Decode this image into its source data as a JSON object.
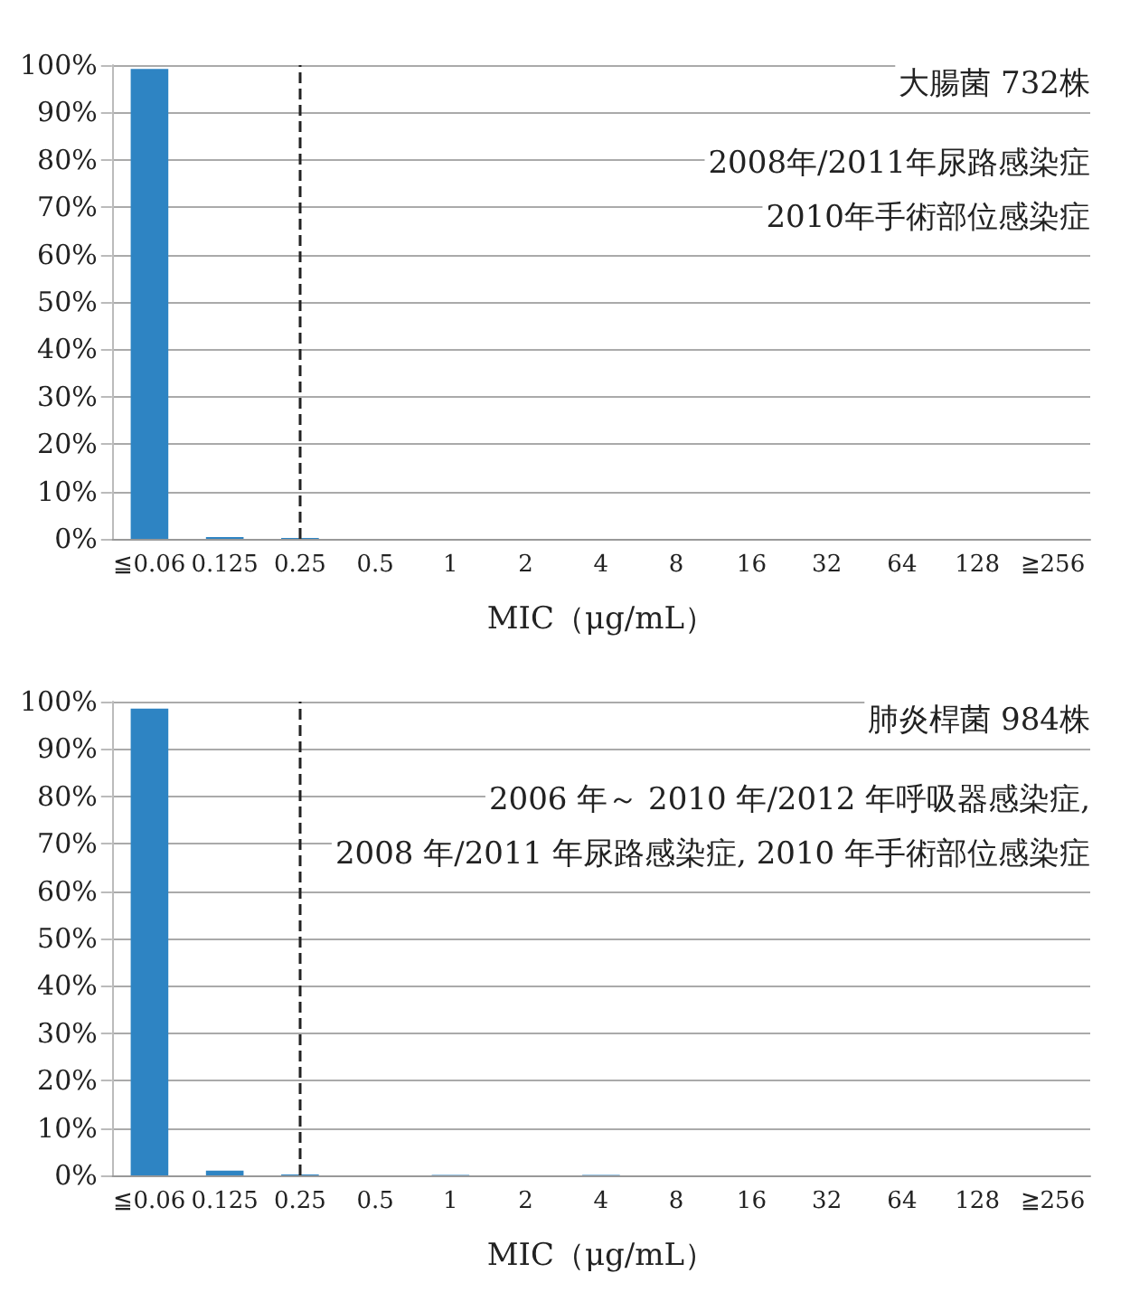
{
  "chart_data": [
    {
      "type": "bar",
      "xlabel": "MIC（μg/mL）",
      "categories": [
        "≦0.06",
        "0.125",
        "0.25",
        "0.5",
        "1",
        "2",
        "4",
        "8",
        "16",
        "32",
        "64",
        "128",
        "≧256"
      ],
      "values": [
        99.2,
        0.4,
        0.2,
        0,
        0,
        0,
        0,
        0,
        0,
        0,
        0,
        0,
        0
      ],
      "color": "#2e84c3",
      "ylim": [
        0,
        100
      ],
      "yticks": [
        {
          "value": 0,
          "label": "0%"
        },
        {
          "value": 10,
          "label": "10%"
        },
        {
          "value": 20,
          "label": "20%"
        },
        {
          "value": 30,
          "label": "30%"
        },
        {
          "value": 40,
          "label": "40%"
        },
        {
          "value": 50,
          "label": "50%"
        },
        {
          "value": 60,
          "label": "60%"
        },
        {
          "value": 70,
          "label": "70%"
        },
        {
          "value": 80,
          "label": "80%"
        },
        {
          "value": 90,
          "label": "90%"
        },
        {
          "value": 100,
          "label": "100%"
        }
      ],
      "grid": "y",
      "ref_lines": [
        {
          "axis": "x",
          "value": "0.25",
          "line_style": "dashed",
          "color": "#222222"
        }
      ],
      "annotations": [
        "大腸菌 732株",
        "2008年/2011年尿路感染症",
        "2010年手術部位感染症"
      ]
    },
    {
      "type": "bar",
      "xlabel": "MIC（μg/mL）",
      "categories": [
        "≦0.06",
        "0.125",
        "0.25",
        "0.5",
        "1",
        "2",
        "4",
        "8",
        "16",
        "32",
        "64",
        "128",
        "≧256"
      ],
      "values": [
        98.5,
        1.0,
        0.2,
        0,
        0.1,
        0,
        0.1,
        0,
        0,
        0,
        0,
        0,
        0
      ],
      "color": "#2e84c3",
      "ylim": [
        0,
        100
      ],
      "yticks": [
        {
          "value": 0,
          "label": "0%"
        },
        {
          "value": 10,
          "label": "10%"
        },
        {
          "value": 20,
          "label": "20%"
        },
        {
          "value": 30,
          "label": "30%"
        },
        {
          "value": 40,
          "label": "40%"
        },
        {
          "value": 50,
          "label": "50%"
        },
        {
          "value": 60,
          "label": "60%"
        },
        {
          "value": 70,
          "label": "70%"
        },
        {
          "value": 80,
          "label": "80%"
        },
        {
          "value": 90,
          "label": "90%"
        },
        {
          "value": 100,
          "label": "100%"
        }
      ],
      "grid": "y",
      "ref_lines": [
        {
          "axis": "x",
          "value": "0.25",
          "line_style": "dashed",
          "color": "#222222"
        }
      ],
      "annotations": [
        "肺炎桿菌 984株",
        "2006 年～ 2010 年/2012 年呼吸器感染症,",
        "2008 年/2011 年尿路感染症, 2010 年手術部位感染症"
      ]
    }
  ]
}
